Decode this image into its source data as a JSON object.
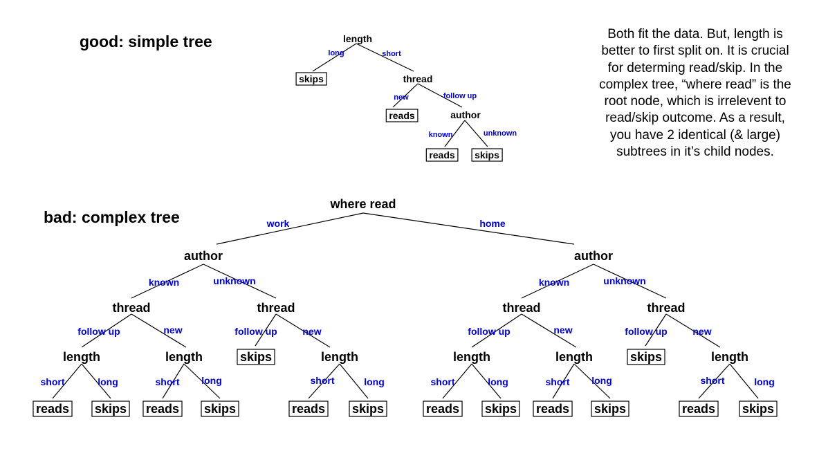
{
  "headings": {
    "good": "good: simple tree",
    "bad": "bad: complex tree"
  },
  "note": "Both fit the data. But, length is better to first split on. It is crucial for determing read/skip. In the complex tree, “where read” is the root node, which is irrelevent to read/skip outcome. As a result, you have 2 identical (& large) subtrees in it’s child nodes.",
  "colors": {
    "edge_label": "#0000dd",
    "node_text": "#000000",
    "line": "#000000"
  },
  "simple_tree": {
    "length": "length",
    "edge_long": "long",
    "edge_short": "short",
    "skips_1": "skips",
    "thread": "thread",
    "edge_new": "new",
    "edge_follow_up": "follow up",
    "reads_1": "reads",
    "author": "author",
    "edge_known": "known",
    "edge_unknown": "unknown",
    "reads_2": "reads",
    "skips_2": "skips"
  },
  "complex_tree": {
    "root": "where read",
    "edge_work": "work",
    "edge_home": "home",
    "author": "author",
    "thread": "thread",
    "length": "length",
    "reads": "reads",
    "skips": "skips",
    "edge_known": "known",
    "edge_unknown": "unknown",
    "edge_follow_up": "follow up",
    "edge_new": "new",
    "edge_short": "short",
    "edge_long": "long"
  }
}
